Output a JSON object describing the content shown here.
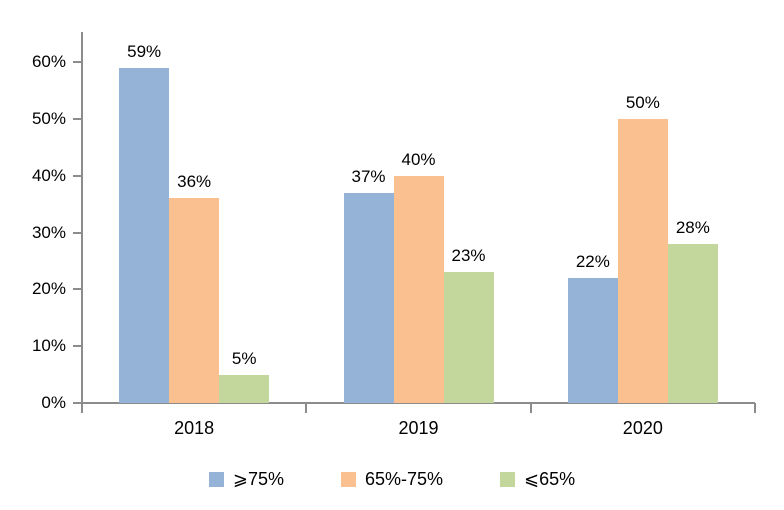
{
  "chart_data": {
    "type": "bar",
    "categories": [
      "2018",
      "2019",
      "2020"
    ],
    "series": [
      {
        "name": "⩾75%",
        "color": "#95B3D7",
        "values": [
          59,
          37,
          22
        ]
      },
      {
        "name": "65%-75%",
        "color": "#FAC08F",
        "values": [
          36,
          40,
          50
        ]
      },
      {
        "name": "⩽65%",
        "color": "#C3D69B",
        "values": [
          5,
          23,
          28
        ]
      }
    ],
    "value_suffix": "%",
    "ylim": [
      0,
      60
    ],
    "y_ticks": [
      0,
      10,
      20,
      30,
      40,
      50,
      60
    ],
    "y_tick_labels": [
      "0%",
      "10%",
      "20%",
      "30%",
      "40%",
      "50%",
      "60%"
    ],
    "grid": false,
    "data_labels": true,
    "legend_position": "bottom",
    "axis_color": "#8C8C8C",
    "text_color": "#000000"
  }
}
